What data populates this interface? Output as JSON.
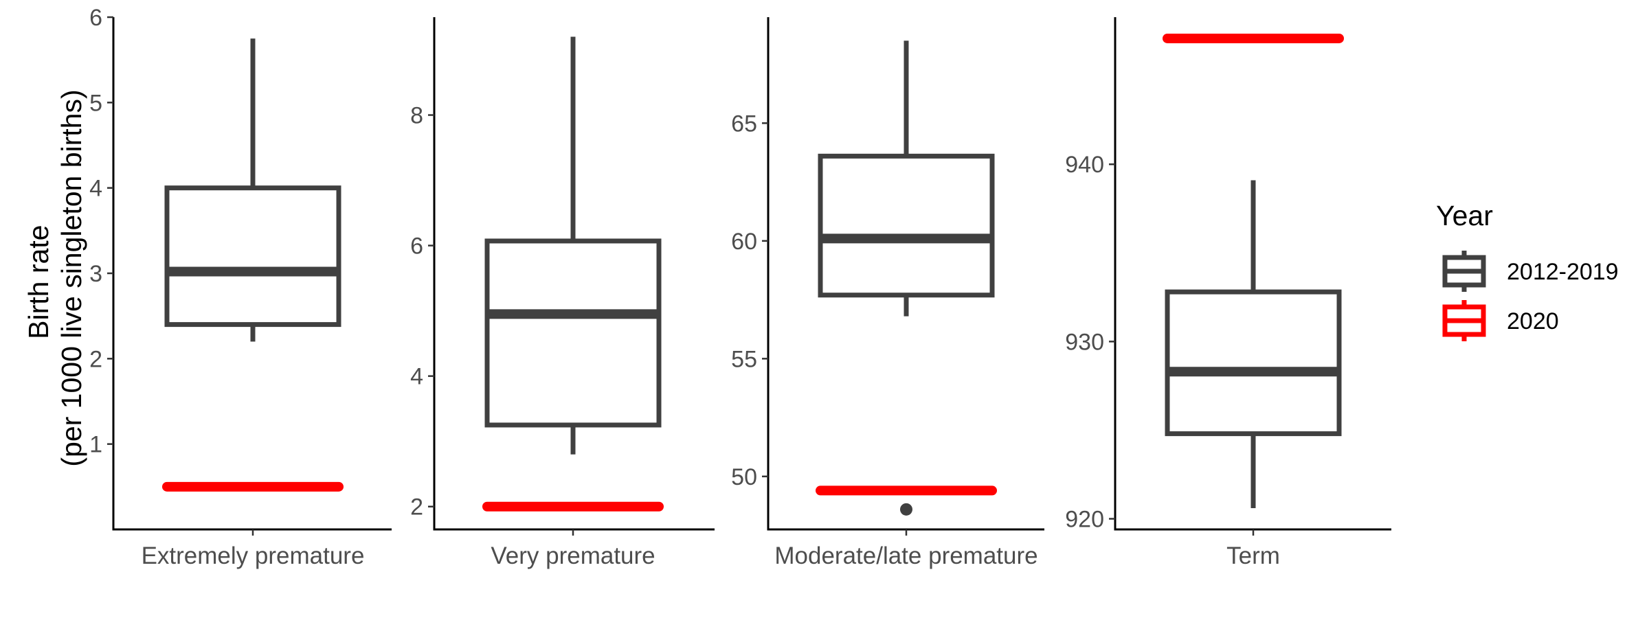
{
  "chart_data": {
    "type": "boxplot",
    "ylabel_lines": [
      "Birth rate",
      "(per 1000 live singleton births)"
    ],
    "legend": {
      "title": "Year",
      "position": "right",
      "entries": [
        {
          "label": "2012-2019",
          "color": "#404040"
        },
        {
          "label": "2020",
          "color": "#ff0000"
        }
      ]
    },
    "grid": false,
    "panels": [
      {
        "category": "Extremely premature",
        "ylim": [
          0,
          6
        ],
        "yticks": [
          1,
          2,
          3,
          4,
          5,
          6
        ],
        "box": {
          "min": 2.2,
          "q1": 2.4,
          "median": 3.02,
          "q3": 4.0,
          "max": 5.75,
          "outliers": []
        },
        "value_2020": 0.5
      },
      {
        "category": "Very premature",
        "ylim": [
          1.65,
          9.5
        ],
        "yticks": [
          2,
          4,
          6,
          8
        ],
        "box": {
          "min": 2.8,
          "q1": 3.25,
          "median": 4.95,
          "q3": 6.07,
          "max": 9.2,
          "outliers": []
        },
        "value_2020": 2.0
      },
      {
        "category": "Moderate/late premature",
        "ylim": [
          47.75,
          69.5
        ],
        "yticks": [
          50,
          55,
          60,
          65
        ],
        "box": {
          "min": 56.8,
          "q1": 57.7,
          "median": 60.1,
          "q3": 63.6,
          "max": 68.5,
          "outliers": [
            48.6
          ]
        },
        "value_2020": 49.4
      },
      {
        "category": "Term",
        "ylim": [
          919.4,
          948.3
        ],
        "yticks": [
          920,
          930,
          940
        ],
        "box": {
          "min": 920.6,
          "q1": 924.8,
          "median": 928.3,
          "q3": 932.8,
          "max": 939.1,
          "outliers": []
        },
        "value_2020": 947.1
      }
    ]
  }
}
